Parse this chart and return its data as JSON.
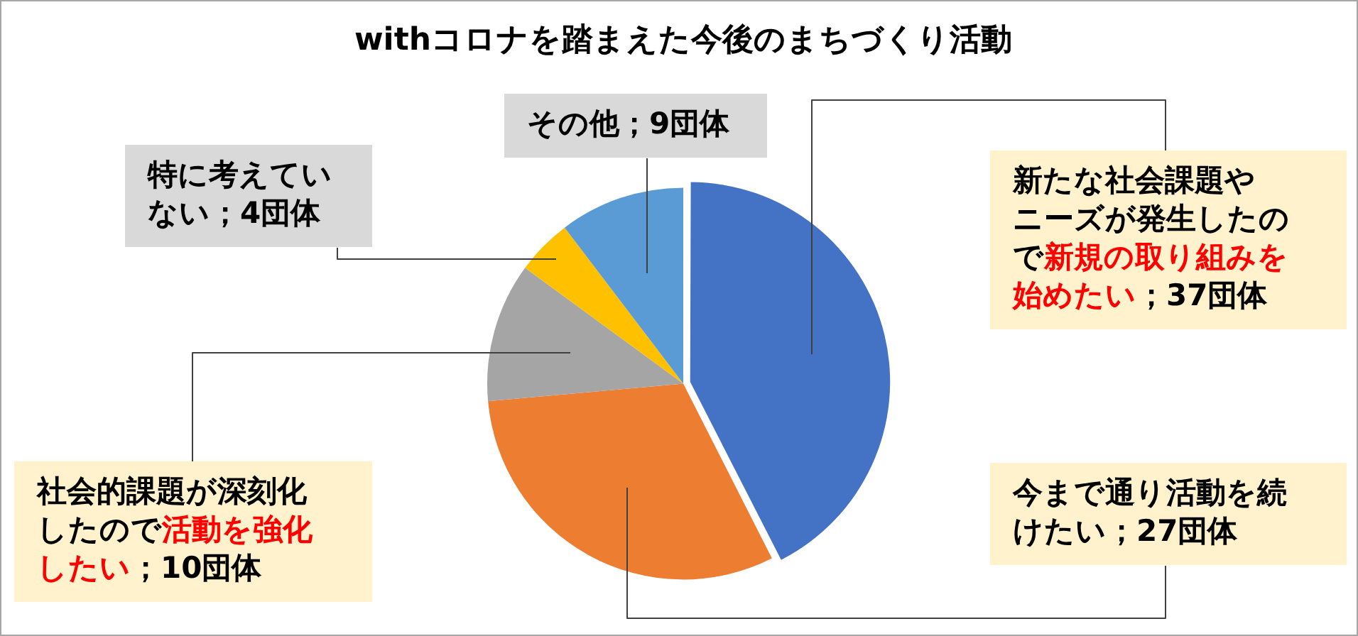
{
  "chart_data": {
    "type": "pie",
    "title": "withコロナを踏まえた今後のまちづくり活動",
    "categories": [
      "新たな社会課題やニーズが発生したので新規の取り組みを始めたい；37団体",
      "今まで通り活動を続けたい；27団体",
      "社会的課題が深刻化したので活動を強化したい；10団体",
      "特に考えていない；4団体",
      "その他；9団体"
    ],
    "values": [
      37,
      27,
      10,
      4,
      9
    ],
    "colors": [
      "#4472c4",
      "#ed7d31",
      "#a5a5a5",
      "#ffc000",
      "#5b9bd5"
    ]
  }
}
